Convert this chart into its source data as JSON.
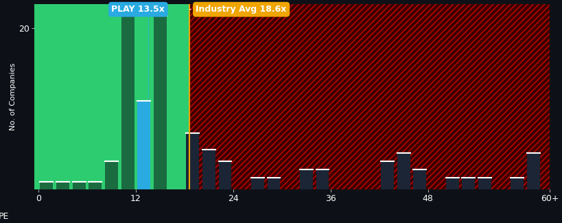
{
  "background_color": "#0d1117",
  "plot_bg_color": "#0d1117",
  "xlabel": "PE",
  "ylabel": "No. of Companies",
  "ylim": [
    0,
    23
  ],
  "yticks": [
    20
  ],
  "xlim": [
    -0.5,
    63
  ],
  "xticks": [
    0,
    12,
    24,
    36,
    48,
    63
  ],
  "xticklabels": [
    "0",
    "12",
    "24",
    "36",
    "48",
    "60+"
  ],
  "bar_width": 1.6,
  "play_pe": 13.5,
  "industry_avg_pe": 18.6,
  "bars": [
    {
      "x": 1,
      "height": 1,
      "color": "green_dark"
    },
    {
      "x": 3,
      "height": 1,
      "color": "green_dark"
    },
    {
      "x": 5,
      "height": 1,
      "color": "green_dark"
    },
    {
      "x": 7,
      "height": 1,
      "color": "green_dark"
    },
    {
      "x": 9,
      "height": 3.5,
      "color": "green_dark"
    },
    {
      "x": 11,
      "height": 21.5,
      "color": "green_dark"
    },
    {
      "x": 13,
      "height": 11,
      "color": "blue"
    },
    {
      "x": 15,
      "height": 21.5,
      "color": "green_dark"
    },
    {
      "x": 19,
      "height": 7,
      "color": "dark"
    },
    {
      "x": 21,
      "height": 5,
      "color": "dark"
    },
    {
      "x": 23,
      "height": 3.5,
      "color": "dark"
    },
    {
      "x": 27,
      "height": 1.5,
      "color": "dark"
    },
    {
      "x": 29,
      "height": 1.5,
      "color": "dark"
    },
    {
      "x": 33,
      "height": 2.5,
      "color": "dark"
    },
    {
      "x": 35,
      "height": 2.5,
      "color": "dark"
    },
    {
      "x": 43,
      "height": 3.5,
      "color": "dark"
    },
    {
      "x": 45,
      "height": 4.5,
      "color": "dark"
    },
    {
      "x": 47,
      "height": 2.5,
      "color": "dark"
    },
    {
      "x": 51,
      "height": 1.5,
      "color": "dark"
    },
    {
      "x": 53,
      "height": 1.5,
      "color": "dark"
    },
    {
      "x": 55,
      "height": 1.5,
      "color": "dark"
    },
    {
      "x": 59,
      "height": 1.5,
      "color": "dark"
    },
    {
      "x": 61,
      "height": 4.5,
      "color": "dark"
    }
  ],
  "green_light_color": "#2ecc71",
  "green_dark_color": "#1a6b40",
  "blue_color": "#29aae1",
  "dark_bar_color": "#1c2535",
  "hatch_color": "#cc0000",
  "hatch_pattern": "////",
  "play_line_color": "#29aae1",
  "industry_line_color": "#f0a500",
  "play_label": "PLAY 13.5x",
  "industry_label": "Industry Avg 18.6x",
  "play_label_color": "#29aae1",
  "industry_label_color": "#f0a500",
  "text_color": "#ffffff",
  "font_size": 9
}
